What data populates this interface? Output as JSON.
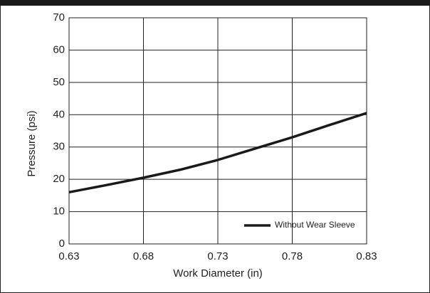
{
  "chart_data": {
    "type": "line",
    "x_label": "Work Diameter (in)",
    "y_label": "Pressure (psi)",
    "x": [
      0.63,
      0.655,
      0.68,
      0.705,
      0.73,
      0.755,
      0.78,
      0.805,
      0.83
    ],
    "series": [
      {
        "name": "Without Wear Sleeve",
        "color": "#1a1a1a",
        "values": [
          16,
          18.2,
          20.5,
          23,
          26,
          29.5,
          33,
          36.8,
          40.5
        ]
      }
    ],
    "xlim": [
      0.63,
      0.83
    ],
    "xticks": [
      0.63,
      0.68,
      0.73,
      0.78,
      0.83
    ],
    "ylim": [
      0,
      70
    ],
    "yticks": [
      0,
      10,
      20,
      30,
      40,
      50,
      60,
      70
    ],
    "grid": true,
    "legend": "lower right"
  }
}
